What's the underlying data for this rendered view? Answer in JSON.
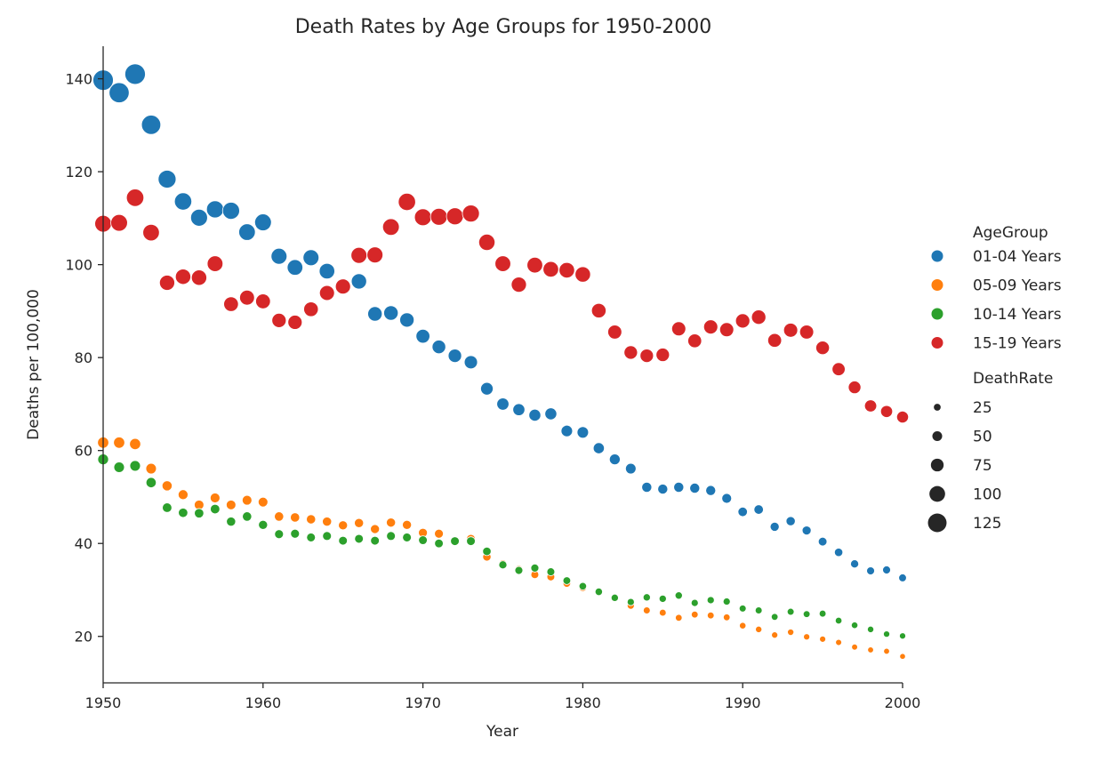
{
  "chart_data": {
    "type": "scatter",
    "title": "Death Rates by Age Groups for 1950-2000",
    "xlabel": "Year",
    "ylabel": "Deaths per 100,000",
    "xlim": [
      1950,
      2000
    ],
    "ylim": [
      10,
      147
    ],
    "xticks": [
      "1950",
      "1960",
      "1970",
      "1980",
      "1990",
      "2000"
    ],
    "yticks": [
      "20",
      "40",
      "60",
      "80",
      "100",
      "120",
      "140"
    ],
    "x": [
      1950,
      1951,
      1952,
      1953,
      1954,
      1955,
      1956,
      1957,
      1958,
      1959,
      1960,
      1961,
      1962,
      1963,
      1964,
      1965,
      1966,
      1967,
      1968,
      1969,
      1970,
      1971,
      1972,
      1973,
      1974,
      1975,
      1976,
      1977,
      1978,
      1979,
      1980,
      1981,
      1982,
      1983,
      1984,
      1985,
      1986,
      1987,
      1988,
      1989,
      1990,
      1991,
      1992,
      1993,
      1994,
      1995,
      1996,
      1997,
      1998,
      1999,
      2000
    ],
    "hue_legend_title": "AgeGroup",
    "size_legend_title": "DeathRate",
    "size_legend_values": [
      "25",
      "50",
      "75",
      "100",
      "125"
    ],
    "size_range": [
      15,
      145
    ],
    "grid": false,
    "legend_position": "right",
    "series": [
      {
        "name": "01-04 Years",
        "color": "#1f77b4",
        "values": [
          139.7,
          137.0,
          141.0,
          130.1,
          118.4,
          113.6,
          110.1,
          111.9,
          111.6,
          107.0,
          109.1,
          101.8,
          99.4,
          101.5,
          98.6,
          95.3,
          96.4,
          89.4,
          89.6,
          88.1,
          84.6,
          82.3,
          80.4,
          79.0,
          73.3,
          70.0,
          68.8,
          67.6,
          67.9,
          64.2,
          63.9,
          60.5,
          58.1,
          56.1,
          52.1,
          51.7,
          52.1,
          51.9,
          51.4,
          49.7,
          46.8,
          47.3,
          43.6,
          44.8,
          42.8,
          40.4,
          38.1,
          35.6,
          34.1,
          34.3,
          32.6
        ]
      },
      {
        "name": "05-09 Years",
        "color": "#ff7f0e",
        "values": [
          61.7,
          61.7,
          61.4,
          56.1,
          52.4,
          50.5,
          48.3,
          49.8,
          48.3,
          49.3,
          48.9,
          45.8,
          45.6,
          45.2,
          44.7,
          43.9,
          44.4,
          43.1,
          44.5,
          44.0,
          42.3,
          42.1,
          40.6,
          41.0,
          37.1,
          35.6,
          34.4,
          33.3,
          32.8,
          31.4,
          30.5,
          29.5,
          28.2,
          26.6,
          25.6,
          25.1,
          24.0,
          24.7,
          24.5,
          24.1,
          22.3,
          21.5,
          20.3,
          20.9,
          19.9,
          19.4,
          18.7,
          17.7,
          17.1,
          16.8,
          15.7
        ]
      },
      {
        "name": "10-14 Years",
        "color": "#2ca02c",
        "values": [
          58.1,
          56.4,
          56.7,
          53.1,
          47.7,
          46.6,
          46.5,
          47.4,
          44.7,
          45.8,
          44.0,
          42.0,
          42.1,
          41.3,
          41.6,
          40.6,
          41.0,
          40.6,
          41.6,
          41.3,
          40.7,
          40.0,
          40.5,
          40.5,
          38.3,
          35.4,
          34.2,
          34.7,
          33.9,
          32.0,
          30.8,
          29.6,
          28.3,
          27.4,
          28.4,
          28.1,
          28.8,
          27.2,
          27.8,
          27.5,
          26.0,
          25.6,
          24.2,
          25.3,
          24.8,
          24.9,
          23.4,
          22.4,
          21.5,
          20.5,
          20.1
        ]
      },
      {
        "name": "15-19 Years",
        "color": "#d62728",
        "values": [
          108.8,
          109.0,
          114.4,
          106.9,
          96.1,
          97.4,
          97.2,
          100.2,
          91.5,
          92.9,
          92.1,
          88.0,
          87.6,
          90.4,
          93.9,
          95.3,
          102.0,
          102.1,
          108.1,
          113.5,
          110.2,
          110.3,
          110.4,
          111.0,
          104.8,
          100.2,
          95.7,
          99.9,
          99.0,
          98.8,
          97.9,
          90.1,
          85.5,
          81.1,
          80.4,
          80.6,
          86.2,
          83.6,
          86.6,
          86.0,
          87.9,
          88.7,
          83.7,
          85.9,
          85.5,
          82.1,
          77.5,
          73.6,
          69.6,
          68.4,
          67.2
        ]
      }
    ]
  }
}
